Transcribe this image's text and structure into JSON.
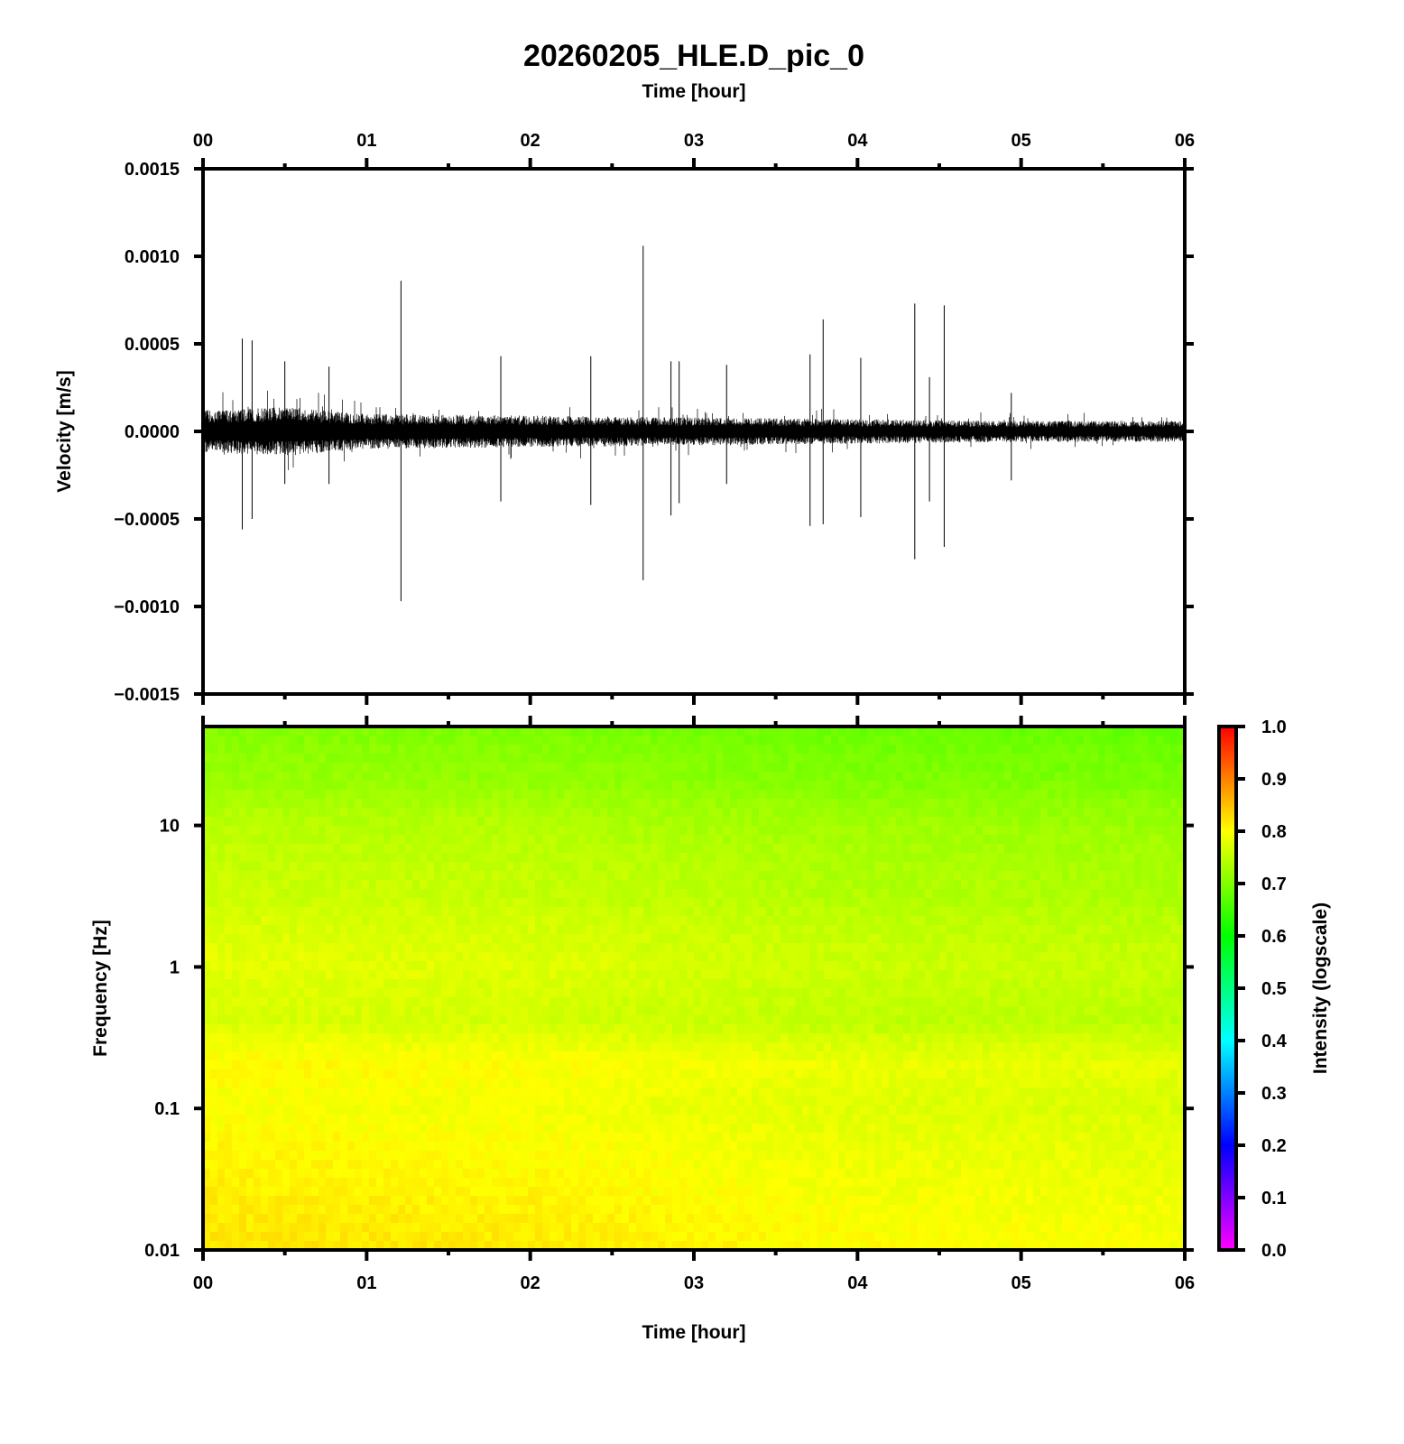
{
  "chart_data": [
    {
      "type": "line",
      "title": "20260205_HLE.D_pic_0",
      "xlabel": "Time [hour]",
      "ylabel": "Velocity [m/s]",
      "xlim": [
        0,
        6
      ],
      "ylim": [
        -0.0015,
        0.0015
      ],
      "x_ticks": [
        "00",
        "01",
        "02",
        "03",
        "04",
        "05",
        "06"
      ],
      "y_ticks": [
        "0.0015",
        "0.0010",
        "0.0005",
        "0.0000",
        "−0.0005",
        "−0.0010",
        "−0.0015"
      ],
      "y_tick_values": [
        0.0015,
        0.001,
        0.0005,
        0,
        -0.0005,
        -0.001,
        -0.0015
      ],
      "line_color": "#000000",
      "noise_envelope": {
        "time": [
          0,
          0.5,
          1,
          2,
          3,
          4,
          5,
          6
        ],
        "amplitude": [
          0.00012,
          0.00014,
          0.0001,
          9e-05,
          8e-05,
          7e-05,
          6e-05,
          6e-05
        ]
      },
      "spikes": [
        {
          "t": 0.24,
          "max": 0.00053,
          "min": -0.00056
        },
        {
          "t": 0.3,
          "max": 0.00052,
          "min": -0.0005
        },
        {
          "t": 0.5,
          "max": 0.0004,
          "min": -0.0003
        },
        {
          "t": 0.77,
          "max": 0.00037,
          "min": -0.0003
        },
        {
          "t": 1.21,
          "max": 0.00086,
          "min": -0.00097
        },
        {
          "t": 1.82,
          "max": 0.00043,
          "min": -0.0004
        },
        {
          "t": 2.37,
          "max": 0.00043,
          "min": -0.00042
        },
        {
          "t": 2.69,
          "max": 0.00106,
          "min": -0.00085
        },
        {
          "t": 2.86,
          "max": 0.0004,
          "min": -0.00048
        },
        {
          "t": 2.91,
          "max": 0.0004,
          "min": -0.00041
        },
        {
          "t": 3.2,
          "max": 0.00038,
          "min": -0.0003
        },
        {
          "t": 3.71,
          "max": 0.00044,
          "min": -0.00054
        },
        {
          "t": 3.79,
          "max": 0.00064,
          "min": -0.00053
        },
        {
          "t": 4.02,
          "max": 0.00042,
          "min": -0.00049
        },
        {
          "t": 4.35,
          "max": 0.00073,
          "min": -0.00073
        },
        {
          "t": 4.44,
          "max": 0.00031,
          "min": -0.0004
        },
        {
          "t": 4.53,
          "max": 0.00072,
          "min": -0.00066
        },
        {
          "t": 4.94,
          "max": 0.00022,
          "min": -0.00028
        }
      ]
    },
    {
      "type": "heatmap",
      "xlabel": "Time [hour]",
      "ylabel": "Frequency [Hz]",
      "xlim": [
        0,
        6
      ],
      "ylim": [
        0.01,
        50
      ],
      "y_scale": "log",
      "x_ticks": [
        "00",
        "01",
        "02",
        "03",
        "04",
        "05",
        "06"
      ],
      "y_ticks": [
        "10",
        "1",
        "0.1",
        "0.01"
      ],
      "y_tick_values": [
        10,
        1,
        0.1,
        0.01
      ],
      "colorbar": {
        "label": "Intensity (logscale)",
        "range": [
          0,
          1
        ],
        "ticks": [
          "1.0",
          "0.9",
          "0.8",
          "0.7",
          "0.6",
          "0.5",
          "0.4",
          "0.3",
          "0.2",
          "0.1",
          "0.0"
        ],
        "colormap": [
          "#ff00ff",
          "#8000ff",
          "#0000ff",
          "#0080ff",
          "#00ffff",
          "#00ff80",
          "#00ff00",
          "#80ff00",
          "#ffff00",
          "#ff8000",
          "#ff0000"
        ]
      },
      "intensity_vs_frequency": {
        "frequency": [
          50,
          20,
          10,
          3,
          1,
          0.4,
          0.2,
          0.1,
          0.03,
          0.01
        ],
        "intensity": [
          0.69,
          0.71,
          0.735,
          0.75,
          0.77,
          0.76,
          0.795,
          0.785,
          0.8,
          0.81
        ]
      },
      "intensity_time_trend": {
        "time": [
          0,
          2,
          4,
          6
        ],
        "offset": [
          0.01,
          0.005,
          -0.01,
          -0.015
        ]
      }
    }
  ]
}
